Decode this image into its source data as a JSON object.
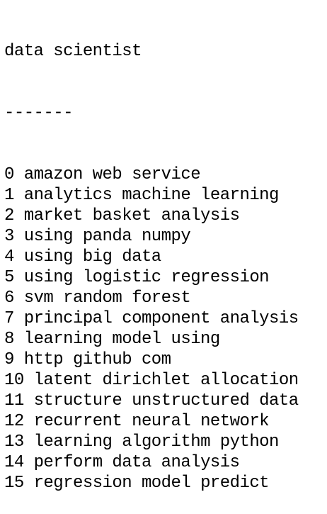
{
  "header": {
    "title": "data scientist",
    "separator": "-------"
  },
  "items": [
    {
      "index": "0",
      "text": "amazon web service"
    },
    {
      "index": "1",
      "text": "analytics machine learning"
    },
    {
      "index": "2",
      "text": "market basket analysis"
    },
    {
      "index": "3",
      "text": "using panda numpy"
    },
    {
      "index": "4",
      "text": "using big data"
    },
    {
      "index": "5",
      "text": "using logistic regression"
    },
    {
      "index": "6",
      "text": "svm random forest"
    },
    {
      "index": "7",
      "text": "principal component analysis"
    },
    {
      "index": "8",
      "text": "learning model using"
    },
    {
      "index": "9",
      "text": "http github com"
    },
    {
      "index": "10",
      "text": "latent dirichlet allocation"
    },
    {
      "index": "11",
      "text": "structure unstructured data"
    },
    {
      "index": "12",
      "text": "recurrent neural network"
    },
    {
      "index": "13",
      "text": "learning algorithm python"
    },
    {
      "index": "14",
      "text": "perform data analysis"
    },
    {
      "index": "15",
      "text": "regression model predict"
    }
  ]
}
